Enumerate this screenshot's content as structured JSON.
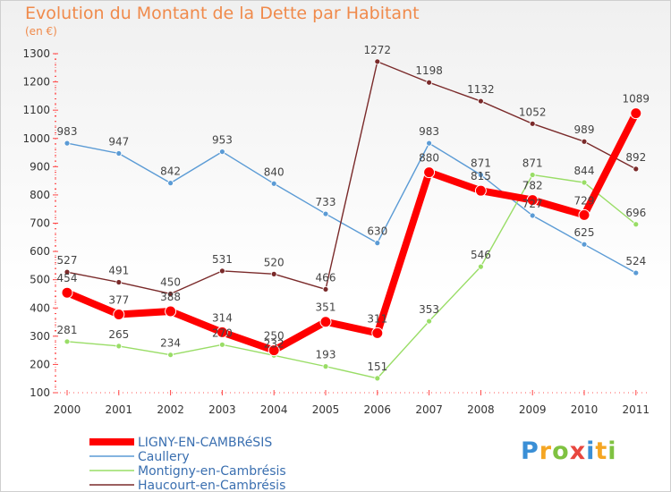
{
  "header": {
    "title": "Evolution du Montant de la Dette par Habitant",
    "subtitle": "(en €)"
  },
  "logo": {
    "text": "Proxiti",
    "colors": [
      "#3a8fd6",
      "#f5a623",
      "#7fc241",
      "#e8473f",
      "#3a8fd6",
      "#f5a623",
      "#7fc241"
    ]
  },
  "chart_data": {
    "type": "line",
    "title": "Evolution du Montant de la Dette par Habitant",
    "subtitle": "(en €)",
    "x": [
      "2000",
      "2001",
      "2002",
      "2003",
      "2004",
      "2005",
      "2006",
      "2007",
      "2008",
      "2009",
      "2010",
      "2011"
    ],
    "ylim": [
      100,
      1300
    ],
    "yticks": [
      100,
      200,
      300,
      400,
      500,
      600,
      700,
      800,
      900,
      1000,
      1100,
      1200,
      1300
    ],
    "grid": false,
    "legend": "bottom-left",
    "series": [
      {
        "name": "LIGNY-EN-CAMBRéSIS",
        "color": "#ff0000",
        "width": 8,
        "values": [
          454,
          377,
          388,
          314,
          250,
          351,
          311,
          880,
          815,
          782,
          729,
          1089
        ]
      },
      {
        "name": "Caullery",
        "color": "#5b9bd5",
        "width": 1.4,
        "values": [
          983,
          947,
          842,
          953,
          840,
          733,
          630,
          983,
          871,
          727,
          625,
          524
        ]
      },
      {
        "name": "Montigny-en-Cambrésis",
        "color": "#99dd66",
        "width": 1.4,
        "values": [
          281,
          265,
          234,
          270,
          232,
          193,
          151,
          353,
          546,
          871,
          844,
          696
        ]
      },
      {
        "name": "Haucourt-en-Cambrésis",
        "color": "#7a2a2a",
        "width": 1.4,
        "values": [
          527,
          491,
          450,
          531,
          520,
          466,
          1272,
          1198,
          1132,
          1052,
          989,
          892
        ]
      }
    ]
  }
}
